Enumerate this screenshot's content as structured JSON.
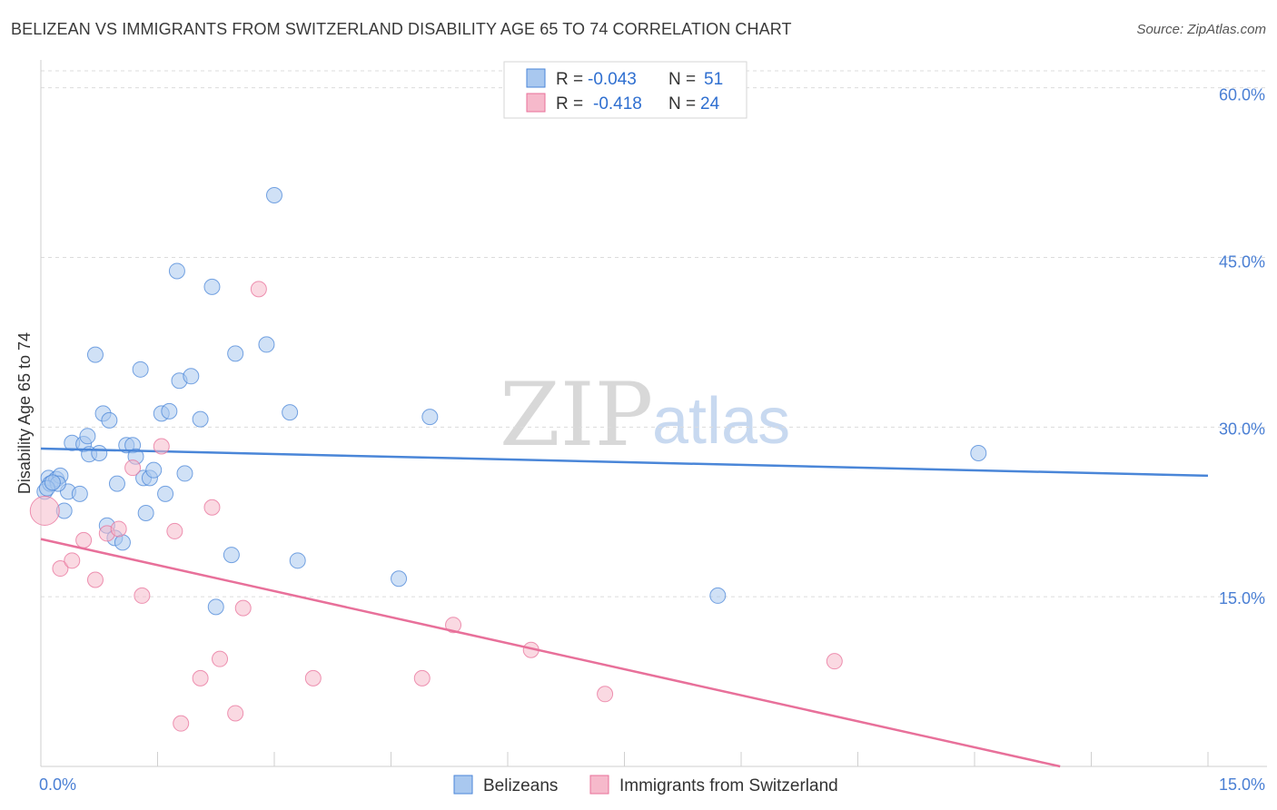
{
  "header": {
    "title": "BELIZEAN VS IMMIGRANTS FROM SWITZERLAND DISABILITY AGE 65 TO 74 CORRELATION CHART",
    "source": "Source: ZipAtlas.com"
  },
  "watermark": {
    "part1": "ZIP",
    "part2": "atlas"
  },
  "legend": {
    "rows": [
      {
        "r_label": "R = ",
        "r_value": "-0.043",
        "n_label": "N = ",
        "n_value": "51",
        "color": "#a9c8ef"
      },
      {
        "r_label": "R = ",
        "r_value": "-0.418",
        "n_label": "N = ",
        "n_value": "24",
        "color": "#f6b9cb"
      }
    ]
  },
  "bottom_legend": {
    "items": [
      {
        "label": "Belizeans",
        "color": "#a9c8ef"
      },
      {
        "label": "Immigrants from Switzerland",
        "color": "#f6b9cb"
      }
    ]
  },
  "chart_data": {
    "type": "scatter",
    "ylabel": "Disability Age 65 to 74",
    "xlim": [
      0,
      15
    ],
    "ylim": [
      0,
      60
    ],
    "x_ticks": [
      "0.0%",
      "15.0%"
    ],
    "y_ticks": [
      "15.0%",
      "30.0%",
      "45.0%",
      "60.0%"
    ],
    "series": [
      {
        "name": "Belizeans",
        "color": "#4a86d8",
        "fill": "#a9c8ef",
        "trend": {
          "x": [
            0,
            15
          ],
          "y": [
            28.1,
            25.7
          ]
        },
        "points": [
          [
            0.05,
            24.3
          ],
          [
            0.1,
            25.5
          ],
          [
            0.12,
            25.0
          ],
          [
            0.2,
            25.4
          ],
          [
            0.25,
            25.7
          ],
          [
            0.3,
            22.6
          ],
          [
            0.35,
            24.3
          ],
          [
            0.4,
            28.6
          ],
          [
            0.5,
            24.1
          ],
          [
            0.55,
            28.5
          ],
          [
            0.6,
            29.2
          ],
          [
            0.62,
            27.6
          ],
          [
            0.7,
            36.4
          ],
          [
            0.75,
            27.7
          ],
          [
            0.8,
            31.2
          ],
          [
            0.88,
            30.6
          ],
          [
            0.85,
            21.3
          ],
          [
            0.95,
            20.2
          ],
          [
            0.98,
            25.0
          ],
          [
            1.05,
            19.8
          ],
          [
            1.1,
            28.4
          ],
          [
            1.18,
            28.4
          ],
          [
            1.22,
            27.4
          ],
          [
            1.28,
            35.1
          ],
          [
            1.32,
            25.5
          ],
          [
            1.35,
            22.4
          ],
          [
            1.4,
            25.5
          ],
          [
            1.45,
            26.2
          ],
          [
            1.55,
            31.2
          ],
          [
            1.6,
            24.1
          ],
          [
            1.65,
            31.4
          ],
          [
            1.75,
            43.8
          ],
          [
            1.78,
            34.1
          ],
          [
            1.85,
            25.9
          ],
          [
            1.93,
            34.5
          ],
          [
            2.05,
            30.7
          ],
          [
            2.2,
            42.4
          ],
          [
            2.25,
            14.1
          ],
          [
            2.45,
            18.7
          ],
          [
            2.5,
            36.5
          ],
          [
            2.9,
            37.3
          ],
          [
            3.0,
            50.5
          ],
          [
            3.2,
            31.3
          ],
          [
            3.3,
            18.2
          ],
          [
            4.6,
            16.6
          ],
          [
            5.0,
            30.9
          ],
          [
            8.7,
            15.1
          ],
          [
            12.05,
            27.7
          ],
          [
            0.22,
            25.0
          ],
          [
            0.08,
            24.6
          ],
          [
            0.15,
            25.1
          ]
        ]
      },
      {
        "name": "Immigrants from Switzerland",
        "color": "#e8709a",
        "fill": "#f6b9cb",
        "trend": {
          "x": [
            0,
            13.1
          ],
          "y": [
            20.1,
            0.0
          ]
        },
        "points": [
          [
            0.05,
            22.6
          ],
          [
            0.25,
            17.5
          ],
          [
            0.4,
            18.2
          ],
          [
            0.55,
            20.0
          ],
          [
            0.7,
            16.5
          ],
          [
            0.85,
            20.6
          ],
          [
            1.0,
            21.0
          ],
          [
            1.18,
            26.4
          ],
          [
            1.3,
            15.1
          ],
          [
            1.55,
            28.3
          ],
          [
            1.72,
            20.8
          ],
          [
            1.8,
            3.8
          ],
          [
            2.05,
            7.8
          ],
          [
            2.2,
            22.9
          ],
          [
            2.3,
            9.5
          ],
          [
            2.5,
            4.7
          ],
          [
            2.6,
            14.0
          ],
          [
            2.8,
            42.2
          ],
          [
            3.5,
            7.8
          ],
          [
            4.9,
            7.8
          ],
          [
            5.3,
            12.5
          ],
          [
            6.3,
            10.3
          ],
          [
            7.25,
            6.4
          ],
          [
            10.2,
            9.3
          ]
        ]
      }
    ]
  }
}
